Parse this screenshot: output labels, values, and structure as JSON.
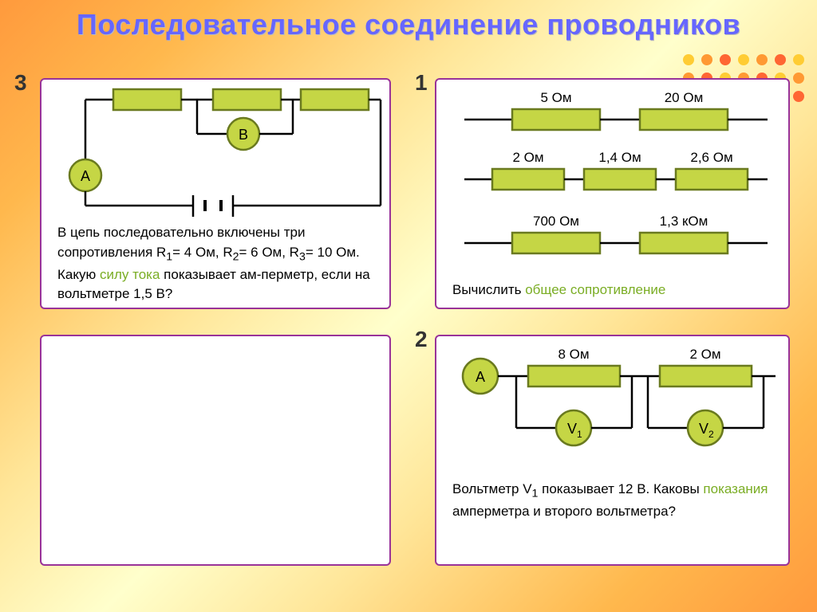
{
  "title": "Последовательное соединение проводников",
  "colors": {
    "resistor_fill": "#c5d645",
    "resistor_stroke": "#6a7a1f",
    "meter_fill": "#c5d645",
    "meter_stroke": "#6a7a1f",
    "wire": "#000000",
    "panel_border": "#993399",
    "highlight": "#7aad24",
    "dot_colors": [
      "#ffcc33",
      "#ff9933",
      "#ff6633",
      "#ffcc33",
      "#ff9933",
      "#ff6633",
      "#ffcc33",
      "#ff9933",
      "#ff6633",
      "#ffcc33",
      "#ff9933",
      "#ff6633",
      "#ffcc33",
      "#ff9933",
      "#ff6633",
      "#ffcc33",
      "#ff9933",
      "#ff6633",
      "#ffcc33",
      "#ff9933",
      "#ff6633"
    ]
  },
  "panels": {
    "p3": {
      "num": "3",
      "text_a": "В цепь последовательно включены три сопротивления R",
      "sub1": "1",
      "eq1": "= 4 Ом, R",
      "sub2": "2",
      "eq2": "= 6 Ом, R",
      "sub3": "3",
      "eq3": "= 10 Ом. Какую ",
      "hl1": "силу тока",
      "text_b": " показывает ам-перметр, если на вольтметре  1,5 В?",
      "meterA": "А",
      "meterB": "В"
    },
    "p1": {
      "num": "1",
      "row1": {
        "r1": "5 Ом",
        "r2": "20 Ом"
      },
      "row2": {
        "r1": "2 Ом",
        "r2": "1,4 Ом",
        "r3": "2,6 Ом"
      },
      "row3": {
        "r1": "700 Ом",
        "r2": "1,3 кОм"
      },
      "caption_a": "Вычислить ",
      "caption_hl": "общее сопротивление"
    },
    "p2": {
      "num": "2",
      "r1": "8 Ом",
      "r2": "2 Ом",
      "meterA": "А",
      "meterV1": "V",
      "meterV1sub": "1",
      "meterV2": "V",
      "meterV2sub": "2",
      "text_a": "Вольтметр V",
      "sub1": "1",
      "text_b": " показывает 12 В. Каковы ",
      "hl1": "показания",
      "text_c": " амперметра и второго вольтметра?"
    }
  }
}
